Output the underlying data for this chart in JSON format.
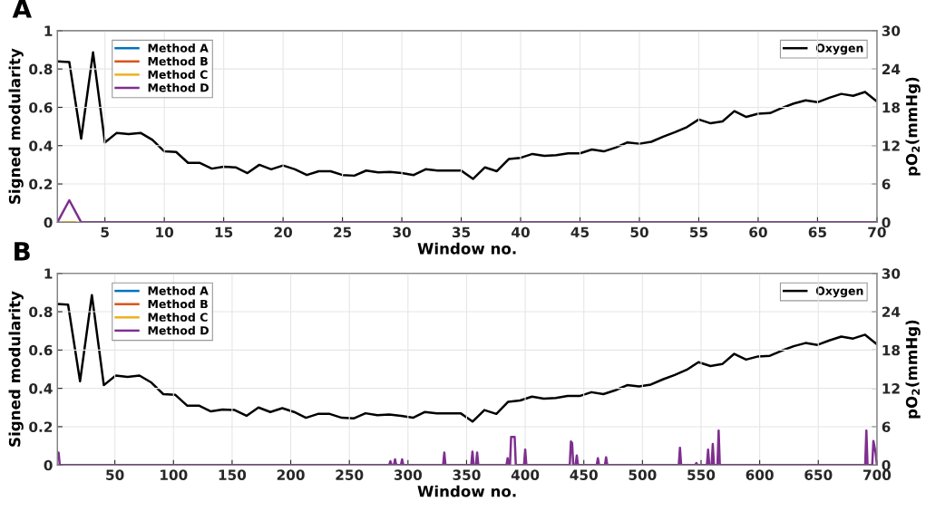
{
  "chart_data": [
    {
      "type": "line",
      "annotations": [
        "A"
      ],
      "xlabel": "Window no.",
      "ylabel": "Signed modularity",
      "y2label": "pO$_{2}$(mmHg)",
      "xlim": [
        1,
        70
      ],
      "xticks": [
        5,
        10,
        15,
        20,
        25,
        30,
        35,
        40,
        45,
        50,
        55,
        60,
        65,
        70
      ],
      "ylim": [
        0,
        1
      ],
      "yticks": [
        0,
        0.2,
        0.4,
        0.6,
        0.8,
        1
      ],
      "y2lim": [
        0,
        30
      ],
      "y2ticks": [
        0,
        6,
        12,
        18,
        24,
        30
      ],
      "grid": true,
      "legend": "top left",
      "series": [
        {
          "name": "Method A",
          "color": "#0072bd"
        },
        {
          "name": "Method B",
          "color": "#d95319"
        },
        {
          "name": "Method C",
          "color": "#edb120",
          "x": [
            1.5,
            2.5
          ],
          "values": [
            0,
            0
          ]
        },
        {
          "name": "Method D",
          "color": "#7e2f8e",
          "x": [
            1,
            2,
            3,
            70
          ],
          "values": [
            0,
            0.115,
            0,
            0
          ]
        },
        {
          "name": "Oxygen",
          "color": "#000000",
          "axis": "y2",
          "x": [
            1,
            2,
            3,
            4,
            5,
            6,
            7,
            8,
            9,
            10,
            11,
            12,
            13,
            14,
            15,
            16,
            17,
            18,
            19,
            20,
            21,
            22,
            23,
            24,
            25,
            26,
            27,
            28,
            29,
            30,
            31,
            32,
            33,
            34,
            35,
            36,
            37,
            38,
            39,
            40,
            41,
            42,
            43,
            44,
            45,
            46,
            47,
            48,
            49,
            50,
            51,
            52,
            53,
            54,
            55,
            56,
            57,
            58,
            59,
            60,
            61,
            62,
            63,
            64,
            65,
            66,
            67,
            68,
            69,
            70
          ],
          "values": [
            25.2,
            25.1,
            13.1,
            26.6,
            12.5,
            14.0,
            13.8,
            14.0,
            12.9,
            11.1,
            11.0,
            9.3,
            9.3,
            8.4,
            8.7,
            8.6,
            7.7,
            9.0,
            8.3,
            8.9,
            8.3,
            7.4,
            8.0,
            8.0,
            7.4,
            7.3,
            8.1,
            7.8,
            7.9,
            7.7,
            7.4,
            8.3,
            8.1,
            8.1,
            8.1,
            6.8,
            8.6,
            8.0,
            9.9,
            10.1,
            10.7,
            10.4,
            10.5,
            10.8,
            10.8,
            11.4,
            11.1,
            11.7,
            12.5,
            12.3,
            12.6,
            13.4,
            14.1,
            14.9,
            16.1,
            15.5,
            15.8,
            17.4,
            16.5,
            17.0,
            17.1,
            17.9,
            18.6,
            19.1,
            18.8,
            19.5,
            20.1,
            19.8,
            20.4,
            18.9
          ]
        }
      ]
    },
    {
      "type": "line",
      "annotations": [
        "B"
      ],
      "xlabel": "Window no.",
      "ylabel": "Signed modularity",
      "y2label": "pO$_{2}$(mmHg)",
      "xlim": [
        1,
        700
      ],
      "xticks": [
        50,
        100,
        150,
        200,
        250,
        300,
        350,
        400,
        450,
        500,
        550,
        600,
        650,
        700
      ],
      "ylim": [
        0,
        1
      ],
      "yticks": [
        0,
        0.2,
        0.4,
        0.6,
        0.8,
        1
      ],
      "y2lim": [
        0,
        30
      ],
      "y2ticks": [
        0,
        6,
        12,
        18,
        24,
        30
      ],
      "grid": true,
      "legend": "top left",
      "series": [
        {
          "name": "Method A",
          "color": "#0072bd"
        },
        {
          "name": "Method B",
          "color": "#d95319"
        },
        {
          "name": "Method C",
          "color": "#edb120"
        },
        {
          "name": "Method D",
          "color": "#7e2f8e",
          "x": [
            1,
            2,
            3,
            284,
            285,
            286,
            288,
            289,
            290,
            294,
            295,
            296,
            330,
            331,
            332,
            354,
            355,
            356,
            358,
            359,
            360,
            384,
            385,
            386,
            387,
            388,
            391,
            392,
            399,
            400,
            401,
            438,
            439,
            440,
            441,
            443,
            444,
            445,
            461,
            462,
            463,
            468,
            469,
            470,
            531,
            532,
            533,
            545,
            546,
            547,
            555,
            556,
            557,
            559,
            560,
            561,
            564,
            565,
            566,
            690,
            691,
            692,
            696,
            697,
            699,
            700
          ],
          "values": [
            0.065,
            0.065,
            0,
            0,
            0.02,
            0,
            0,
            0.03,
            0,
            0,
            0.03,
            0,
            0,
            0.065,
            0,
            0,
            0.07,
            0,
            0,
            0.065,
            0,
            0,
            0.035,
            0,
            0,
            0.147,
            0.147,
            0,
            0,
            0.08,
            0,
            0,
            0.123,
            0.115,
            0,
            0,
            0.05,
            0,
            0,
            0.035,
            0,
            0,
            0.04,
            0,
            0,
            0.09,
            0,
            0,
            0.01,
            0,
            0,
            0.08,
            0,
            0,
            0.11,
            0,
            0,
            0.18,
            0,
            0,
            0.18,
            0,
            0,
            0.125,
            0.06,
            0
          ]
        },
        {
          "name": "Oxygen",
          "color": "#000000",
          "axis": "y2",
          "x": [
            1,
            10.1,
            20.3,
            30.4,
            40.6,
            50.7,
            60.9,
            71.0,
            81.2,
            91.3,
            101.4,
            111.6,
            121.7,
            131.9,
            142.0,
            152.2,
            162.3,
            172.5,
            182.6,
            192.8,
            202.9,
            213.0,
            223.2,
            233.3,
            243.5,
            253.6,
            263.8,
            273.9,
            284.1,
            294.2,
            304.3,
            314.5,
            324.6,
            334.8,
            344.9,
            355.1,
            365.2,
            375.4,
            385.5,
            395.7,
            405.8,
            415.9,
            426.1,
            436.2,
            446.4,
            456.5,
            466.7,
            476.8,
            487.0,
            497.1,
            507.2,
            517.4,
            527.5,
            537.7,
            547.8,
            558.0,
            568.1,
            578.3,
            588.4,
            598.6,
            608.7,
            618.8,
            629.0,
            639.1,
            649.3,
            659.4,
            669.6,
            679.7,
            689.9,
            700
          ],
          "values": [
            25.2,
            25.1,
            13.1,
            26.6,
            12.5,
            14.0,
            13.8,
            14.0,
            12.9,
            11.1,
            11.0,
            9.3,
            9.3,
            8.4,
            8.7,
            8.6,
            7.7,
            9.0,
            8.3,
            8.9,
            8.3,
            7.4,
            8.0,
            8.0,
            7.4,
            7.3,
            8.1,
            7.8,
            7.9,
            7.7,
            7.4,
            8.3,
            8.1,
            8.1,
            8.1,
            6.8,
            8.6,
            8.0,
            9.9,
            10.1,
            10.7,
            10.4,
            10.5,
            10.8,
            10.8,
            11.4,
            11.1,
            11.7,
            12.5,
            12.3,
            12.6,
            13.4,
            14.1,
            14.9,
            16.1,
            15.5,
            15.8,
            17.4,
            16.5,
            17.0,
            17.1,
            17.9,
            18.6,
            19.1,
            18.8,
            19.5,
            20.1,
            19.8,
            20.4,
            18.9
          ]
        }
      ]
    }
  ]
}
